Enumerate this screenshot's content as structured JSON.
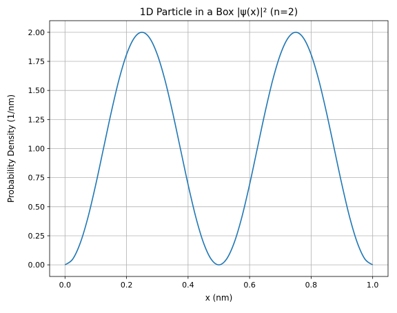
{
  "chart_data": {
    "type": "line",
    "title": "1D Particle in a Box |ψ(x)|² (n=2)",
    "xlabel": "x (nm)",
    "ylabel": "Probability Density (1/nm)",
    "xlim": [
      -0.05,
      1.05
    ],
    "ylim": [
      -0.1,
      2.1
    ],
    "xticks": [
      0.0,
      0.2,
      0.4,
      0.6,
      0.8,
      1.0
    ],
    "xtick_labels": [
      "0.0",
      "0.2",
      "0.4",
      "0.6",
      "0.8",
      "1.0"
    ],
    "yticks": [
      0.0,
      0.25,
      0.5,
      0.75,
      1.0,
      1.25,
      1.5,
      1.75,
      2.0
    ],
    "ytick_labels": [
      "0.00",
      "0.25",
      "0.50",
      "0.75",
      "1.00",
      "1.25",
      "1.50",
      "1.75",
      "2.00"
    ],
    "grid": true,
    "series": [
      {
        "color": "#1f77b4",
        "x": [
          0.0,
          0.025,
          0.05,
          0.075,
          0.1,
          0.125,
          0.15,
          0.175,
          0.2,
          0.225,
          0.25,
          0.275,
          0.3,
          0.325,
          0.35,
          0.375,
          0.4,
          0.425,
          0.45,
          0.475,
          0.5,
          0.525,
          0.55,
          0.575,
          0.6,
          0.625,
          0.65,
          0.675,
          0.7,
          0.725,
          0.75,
          0.775,
          0.8,
          0.825,
          0.85,
          0.875,
          0.9,
          0.925,
          0.95,
          0.975,
          1.0
        ],
        "y": [
          0.0,
          0.049,
          0.191,
          0.412,
          0.691,
          1.0,
          1.309,
          1.588,
          1.809,
          1.951,
          2.0,
          1.951,
          1.809,
          1.588,
          1.309,
          1.0,
          0.691,
          0.412,
          0.191,
          0.049,
          0.0,
          0.049,
          0.191,
          0.412,
          0.691,
          1.0,
          1.309,
          1.588,
          1.809,
          1.951,
          2.0,
          1.951,
          1.809,
          1.588,
          1.309,
          1.0,
          0.691,
          0.412,
          0.191,
          0.049,
          0.0
        ]
      }
    ]
  }
}
